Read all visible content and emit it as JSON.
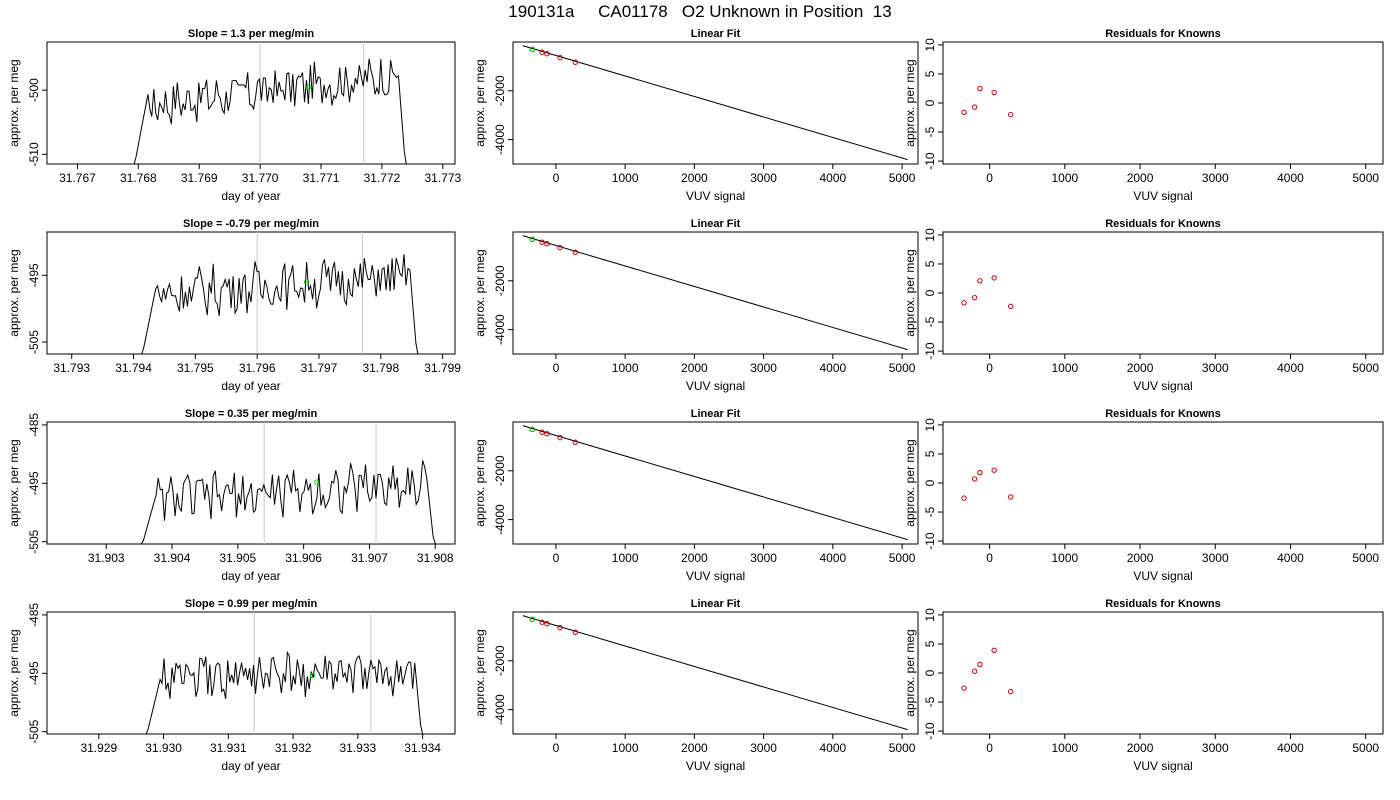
{
  "page_title": "190131a     CA01178   O2 Unknown in Position  13",
  "colors": {
    "trace": "#000000",
    "residual_points": "#cc0000",
    "unknown_point": "#00cc00",
    "vertical_lines": "#c8c8c8",
    "frame": "#000000"
  },
  "chart_data": [
    {
      "type": "line",
      "row": 1,
      "panel": "timeseries",
      "title": "Slope =  1.3  per meg/min",
      "xlabel": "day of year",
      "ylabel": "approx. per meg",
      "xlim": [
        31.7665,
        31.7732
      ],
      "ylim": [
        -511.5,
        -492.5
      ],
      "x_ticks": [
        "31.767",
        "31.768",
        "31.769",
        "31.770",
        "31.771",
        "31.772",
        "31.773"
      ],
      "y_ticks": [
        "-510",
        "-500"
      ],
      "trace": {
        "x_start": 31.7679,
        "x_end": 31.7724,
        "baseline": -500,
        "amplitude": 1.7,
        "trend": 5.0
      },
      "vertical_lines": [
        31.77,
        31.7717
      ],
      "marker": {
        "x": 31.7708,
        "y": -499.5
      }
    },
    {
      "type": "line",
      "row": 1,
      "panel": "linear_fit",
      "title": "Linear Fit",
      "xlabel": "VUV signal",
      "ylabel": "approx. per meg",
      "xlim": [
        -620,
        5230
      ],
      "ylim": [
        -5000,
        0
      ],
      "x_ticks": [
        "0",
        "1000",
        "2000",
        "3000",
        "4000",
        "5000"
      ],
      "y_ticks": [
        "-4000",
        "-2000"
      ],
      "line": {
        "x": [
          -480,
          5080
        ],
        "y": [
          -150,
          -4820
        ]
      },
      "known_points": {
        "x": [
          -340,
          -200,
          -130,
          60,
          280
        ],
        "y": [
          -300,
          -420,
          -480,
          -640,
          -830
        ]
      },
      "unknown_point": {
        "x": -340,
        "y": -300
      }
    },
    {
      "type": "scatter",
      "row": 1,
      "panel": "residuals",
      "title": "Residuals for Knowns",
      "xlabel": "VUV signal",
      "ylabel": "approx. per meg",
      "xlim": [
        -620,
        5230
      ],
      "ylim": [
        -10.5,
        10.5
      ],
      "x_ticks": [
        "0",
        "1000",
        "2000",
        "3000",
        "4000",
        "5000"
      ],
      "y_ticks": [
        "-10",
        "-5",
        "0",
        "5",
        "10"
      ],
      "x": [
        -340,
        -200,
        -130,
        60,
        280
      ],
      "y": [
        -1.6,
        -0.7,
        2.5,
        1.8,
        -2.0
      ]
    },
    {
      "type": "line",
      "row": 2,
      "panel": "timeseries",
      "title": "Slope =  -0.79  per meg/min",
      "xlabel": "day of year",
      "ylabel": "approx. per meg",
      "xlim": [
        31.7926,
        31.7992
      ],
      "ylim": [
        -506.8,
        -488.5
      ],
      "x_ticks": [
        "31.793",
        "31.794",
        "31.795",
        "31.796",
        "31.797",
        "31.798",
        "31.799"
      ],
      "y_ticks": [
        "-505",
        "-495"
      ],
      "trace": {
        "x_start": 31.7941,
        "x_end": 31.7986,
        "baseline": -496.5,
        "amplitude": 1.8,
        "trend": 3.0
      },
      "vertical_lines": [
        31.796,
        31.7977
      ],
      "marker": {
        "x": 31.7968,
        "y": -496
      }
    },
    {
      "type": "line",
      "row": 2,
      "panel": "linear_fit",
      "title": "Linear Fit",
      "xlabel": "VUV signal",
      "ylabel": "approx. per meg",
      "xlim": [
        -620,
        5230
      ],
      "ylim": [
        -5000,
        0
      ],
      "x_ticks": [
        "0",
        "1000",
        "2000",
        "3000",
        "4000",
        "5000"
      ],
      "y_ticks": [
        "-4000",
        "-2000"
      ],
      "line": {
        "x": [
          -480,
          5080
        ],
        "y": [
          -150,
          -4820
        ]
      },
      "known_points": {
        "x": [
          -340,
          -200,
          -130,
          60,
          280
        ],
        "y": [
          -300,
          -420,
          -480,
          -640,
          -830
        ]
      },
      "unknown_point": {
        "x": -340,
        "y": -300
      }
    },
    {
      "type": "scatter",
      "row": 2,
      "panel": "residuals",
      "title": "Residuals for Knowns",
      "xlabel": "VUV signal",
      "ylabel": "approx. per meg",
      "xlim": [
        -620,
        5230
      ],
      "ylim": [
        -10.5,
        10.5
      ],
      "x_ticks": [
        "0",
        "1000",
        "2000",
        "3000",
        "4000",
        "5000"
      ],
      "y_ticks": [
        "-10",
        "-5",
        "0",
        "5",
        "10"
      ],
      "x": [
        -340,
        -200,
        -130,
        60,
        280
      ],
      "y": [
        -1.7,
        -0.8,
        2.1,
        2.6,
        -2.3
      ]
    },
    {
      "type": "line",
      "row": 3,
      "panel": "timeseries",
      "title": "Slope =  0.35  per meg/min",
      "xlabel": "day of year",
      "ylabel": "approx. per meg",
      "xlim": [
        31.9021,
        31.9083
      ],
      "ylim": [
        -505.4,
        -484.5
      ],
      "x_ticks": [
        "31.903",
        "31.904",
        "31.905",
        "31.906",
        "31.907",
        "31.908"
      ],
      "y_ticks": [
        "-505",
        "-495",
        "-485"
      ],
      "trace": {
        "x_start": 31.9035,
        "x_end": 31.908,
        "baseline": -496.5,
        "amplitude": 2.0,
        "trend": 3.0
      },
      "vertical_lines": [
        31.9054,
        31.9071
      ],
      "marker": {
        "x": 31.9062,
        "y": -494.8
      }
    },
    {
      "type": "line",
      "row": 3,
      "panel": "linear_fit",
      "title": "Linear Fit",
      "xlabel": "VUV signal",
      "ylabel": "approx. per meg",
      "xlim": [
        -620,
        5230
      ],
      "ylim": [
        -5000,
        0
      ],
      "x_ticks": [
        "0",
        "1000",
        "2000",
        "3000",
        "4000",
        "5000"
      ],
      "y_ticks": [
        "-4000",
        "-2000"
      ],
      "line": {
        "x": [
          -480,
          5080
        ],
        "y": [
          -150,
          -4820
        ]
      },
      "known_points": {
        "x": [
          -340,
          -200,
          -130,
          60,
          280
        ],
        "y": [
          -300,
          -420,
          -480,
          -640,
          -830
        ]
      },
      "unknown_point": {
        "x": -340,
        "y": -300
      }
    },
    {
      "type": "scatter",
      "row": 3,
      "panel": "residuals",
      "title": "Residuals for Knowns",
      "xlabel": "VUV signal",
      "ylabel": "approx. per meg",
      "xlim": [
        -620,
        5230
      ],
      "ylim": [
        -10.5,
        10.5
      ],
      "x_ticks": [
        "0",
        "1000",
        "2000",
        "3000",
        "4000",
        "5000"
      ],
      "y_ticks": [
        "-10",
        "-5",
        "0",
        "5",
        "10"
      ],
      "x": [
        -340,
        -200,
        -130,
        60,
        280
      ],
      "y": [
        -2.6,
        0.7,
        1.8,
        2.2,
        -2.4
      ]
    },
    {
      "type": "line",
      "row": 4,
      "panel": "timeseries",
      "title": "Slope =  0.99  per meg/min",
      "xlabel": "day of year",
      "ylabel": "approx. per meg",
      "xlim": [
        31.9282,
        31.9345
      ],
      "ylim": [
        -505.4,
        -484.5
      ],
      "x_ticks": [
        "31.929",
        "31.930",
        "31.931",
        "31.932",
        "31.933",
        "31.934"
      ],
      "y_ticks": [
        "-505",
        "-495",
        "-485"
      ],
      "trace": {
        "x_start": 31.9297,
        "x_end": 31.934,
        "baseline": -495.5,
        "amplitude": 1.8,
        "trend": 0.5
      },
      "vertical_lines": [
        31.9314,
        31.9332
      ],
      "marker": {
        "x": 31.9323,
        "y": -495.4
      }
    },
    {
      "type": "line",
      "row": 4,
      "panel": "linear_fit",
      "title": "Linear Fit",
      "xlabel": "VUV signal",
      "ylabel": "approx. per meg",
      "xlim": [
        -620,
        5230
      ],
      "ylim": [
        -5000,
        0
      ],
      "x_ticks": [
        "0",
        "1000",
        "2000",
        "3000",
        "4000",
        "5000"
      ],
      "y_ticks": [
        "-4000",
        "-2000"
      ],
      "line": {
        "x": [
          -480,
          5080
        ],
        "y": [
          -150,
          -4820
        ]
      },
      "known_points": {
        "x": [
          -340,
          -200,
          -130,
          60,
          280
        ],
        "y": [
          -300,
          -420,
          -480,
          -640,
          -830
        ]
      },
      "unknown_point": {
        "x": -340,
        "y": -300
      }
    },
    {
      "type": "scatter",
      "row": 4,
      "panel": "residuals",
      "title": "Residuals for Knowns",
      "xlabel": "VUV signal",
      "ylabel": "approx. per meg",
      "xlim": [
        -620,
        5230
      ],
      "ylim": [
        -10.5,
        10.5
      ],
      "x_ticks": [
        "0",
        "1000",
        "2000",
        "3000",
        "4000",
        "5000"
      ],
      "y_ticks": [
        "-10",
        "-5",
        "0",
        "5",
        "10"
      ],
      "x": [
        -340,
        -200,
        -130,
        60,
        280
      ],
      "y": [
        -2.6,
        0.3,
        1.5,
        3.9,
        -3.2
      ]
    }
  ]
}
